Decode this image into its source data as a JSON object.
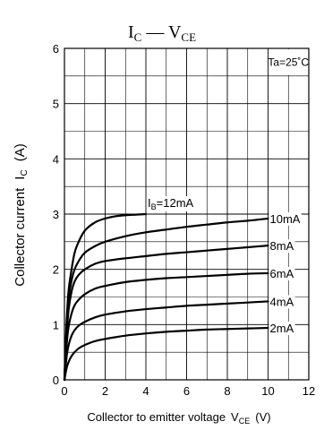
{
  "chart_data": {
    "type": "line",
    "title": "I",
    "title_sub": "C",
    "title_dash": " — V",
    "title_sub2": "CE",
    "xlabel": "Collector to emitter voltage",
    "xlabel_sym": "V",
    "xlabel_sub": "CE",
    "xlabel_unit": "(V)",
    "ylabel": "Collector current",
    "ylabel_sym": "I",
    "ylabel_sub": "C",
    "ylabel_unit": "(A)",
    "xlim": [
      0,
      12
    ],
    "ylim": [
      0,
      6
    ],
    "xticks": [
      "0",
      "2",
      "4",
      "6",
      "8",
      "10",
      "12"
    ],
    "yticks": [
      "0",
      "1",
      "2",
      "3",
      "4",
      "5",
      "6"
    ],
    "grid": true,
    "annotation": "Ta=25˚C",
    "series": [
      {
        "name": "IB=12mA",
        "label_prefix": "I",
        "label_sub": "B",
        "label_rest": "=12mA",
        "x": [
          0,
          0.1,
          0.2,
          0.35,
          0.5,
          0.7,
          1.0,
          1.5,
          2.0,
          2.5,
          3.0,
          3.5,
          4.0
        ],
        "y": [
          0,
          1.0,
          1.6,
          2.0,
          2.3,
          2.5,
          2.7,
          2.85,
          2.92,
          2.96,
          2.98,
          2.99,
          3.0
        ]
      },
      {
        "name": "10mA",
        "x": [
          0,
          0.1,
          0.2,
          0.35,
          0.5,
          0.7,
          1.0,
          1.5,
          2.0,
          3.0,
          4.0,
          5.0,
          6.0,
          7.0,
          8.0,
          9.0,
          10.0
        ],
        "y": [
          0,
          0.9,
          1.45,
          1.8,
          2.0,
          2.15,
          2.3,
          2.42,
          2.5,
          2.6,
          2.67,
          2.72,
          2.77,
          2.81,
          2.85,
          2.88,
          2.92
        ]
      },
      {
        "name": "8mA",
        "x": [
          0,
          0.1,
          0.2,
          0.35,
          0.5,
          0.7,
          1.0,
          1.5,
          2.0,
          3.0,
          4.0,
          5.0,
          6.0,
          7.0,
          8.0,
          9.0,
          10.0
        ],
        "y": [
          0,
          0.75,
          1.25,
          1.6,
          1.78,
          1.9,
          2.0,
          2.1,
          2.15,
          2.2,
          2.24,
          2.28,
          2.31,
          2.34,
          2.37,
          2.4,
          2.43
        ]
      },
      {
        "name": "6mA",
        "x": [
          0,
          0.1,
          0.2,
          0.35,
          0.5,
          0.7,
          1.0,
          1.5,
          2.0,
          3.0,
          4.0,
          5.0,
          6.0,
          7.0,
          8.0,
          9.0,
          10.0
        ],
        "y": [
          0,
          0.6,
          0.95,
          1.2,
          1.35,
          1.45,
          1.55,
          1.65,
          1.7,
          1.77,
          1.81,
          1.84,
          1.86,
          1.88,
          1.9,
          1.92,
          1.93
        ]
      },
      {
        "name": "4mA",
        "x": [
          0,
          0.1,
          0.2,
          0.35,
          0.5,
          0.7,
          1.0,
          1.5,
          2.0,
          3.0,
          4.0,
          5.0,
          6.0,
          7.0,
          8.0,
          9.0,
          10.0
        ],
        "y": [
          0,
          0.4,
          0.62,
          0.8,
          0.9,
          0.98,
          1.05,
          1.13,
          1.18,
          1.24,
          1.28,
          1.31,
          1.34,
          1.36,
          1.38,
          1.4,
          1.42
        ]
      },
      {
        "name": "2mA",
        "x": [
          0,
          0.1,
          0.2,
          0.35,
          0.5,
          0.7,
          1.0,
          1.5,
          2.0,
          3.0,
          4.0,
          5.0,
          6.0,
          7.0,
          8.0,
          9.0,
          10.0
        ],
        "y": [
          0,
          0.2,
          0.32,
          0.43,
          0.5,
          0.57,
          0.63,
          0.7,
          0.74,
          0.8,
          0.84,
          0.87,
          0.89,
          0.91,
          0.92,
          0.93,
          0.94
        ]
      }
    ]
  }
}
